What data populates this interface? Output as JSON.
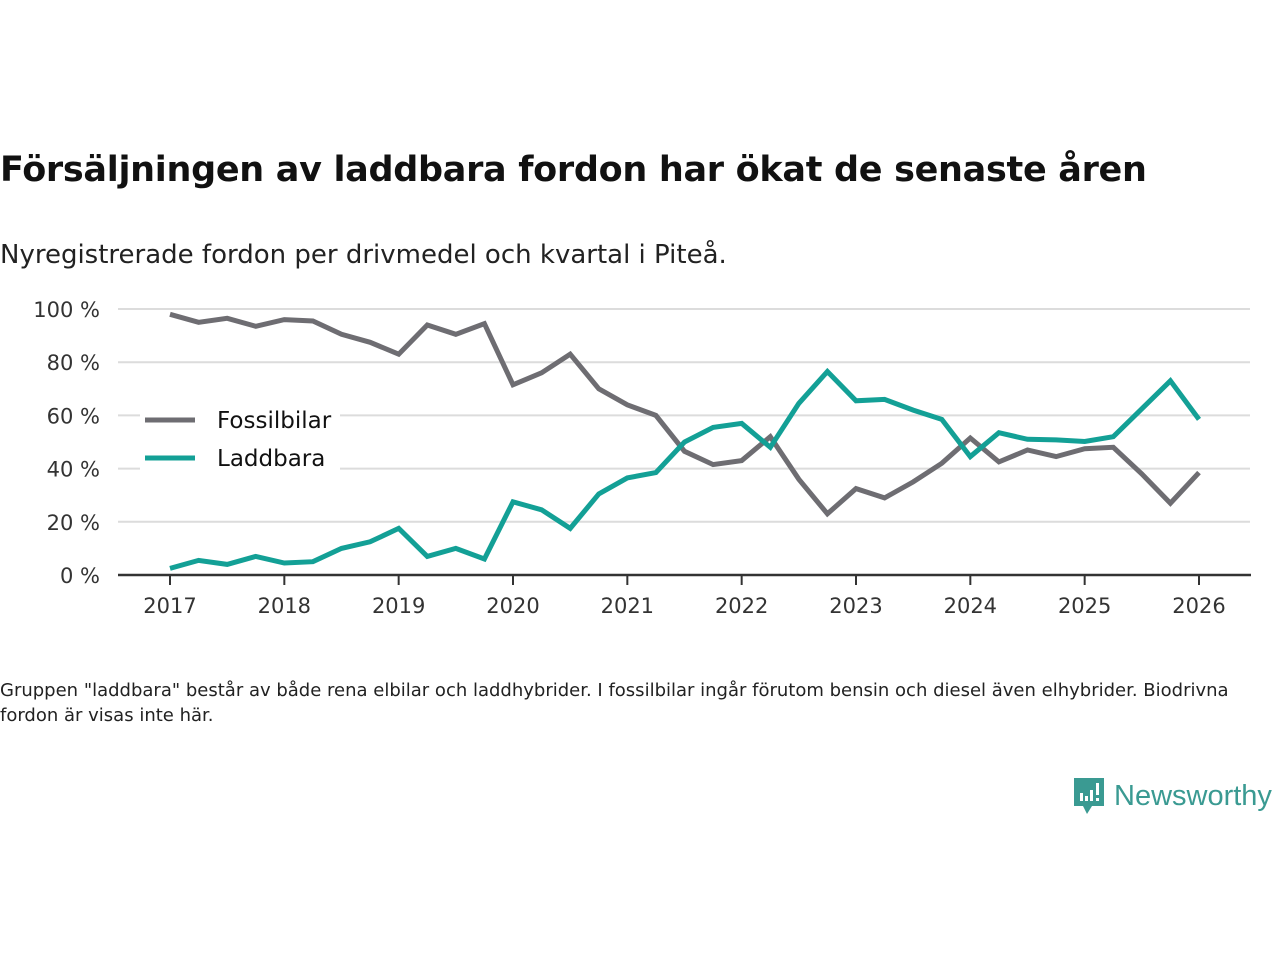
{
  "title": "Försäljningen av laddbara fordon har ökat de senaste åren",
  "subtitle": "Nyregistrerade fordon per drivmedel och kvartal i Piteå.",
  "note": "Gruppen \"laddbara\" består av både rena elbilar och laddhybrider. I fossilbilar ingår förutom bensin och diesel även elhybrider. Biodrivna fordon är visas inte här.",
  "brand": "Newsworthy",
  "colors": {
    "fossil": "#6e6d72",
    "laddbara": "#13a096",
    "brand": "#3a9a92"
  },
  "chart_data": {
    "type": "line",
    "xlabel": "",
    "ylabel": "",
    "ylim": [
      0,
      100
    ],
    "xlim": [
      2017,
      2026
    ],
    "grid": true,
    "legend_position": "left-middle",
    "x_ticks": [
      "2017",
      "2018",
      "2019",
      "2020",
      "2021",
      "2022",
      "2023",
      "2024",
      "2025",
      "2026"
    ],
    "y_ticks": [
      "0 %",
      "20 %",
      "40 %",
      "60 %",
      "80 %",
      "100 %"
    ],
    "x": [
      2017,
      2017.25,
      2017.5,
      2017.75,
      2018,
      2018.25,
      2018.5,
      2018.75,
      2019,
      2019.25,
      2019.5,
      2019.75,
      2020,
      2020.25,
      2020.5,
      2020.75,
      2021,
      2021.25,
      2021.5,
      2021.75,
      2022,
      2022.25,
      2022.5,
      2022.75,
      2023,
      2023.25,
      2023.5,
      2023.75,
      2024,
      2024.25,
      2024.5,
      2024.75,
      2025,
      2025.25,
      2025.5,
      2025.75,
      2026
    ],
    "series": [
      {
        "name": "Fossilbilar",
        "color": "#6e6d72",
        "values": [
          98,
          95,
          96.5,
          93.5,
          96,
          95.5,
          90.5,
          87.5,
          83,
          94,
          90.5,
          94.5,
          71.5,
          76,
          83,
          70,
          64,
          60,
          46.5,
          41.5,
          43,
          52,
          36,
          23,
          32.5,
          29,
          35,
          42,
          51.5,
          42.5,
          47,
          44.5,
          47.5,
          48,
          38,
          27,
          38.5
        ]
      },
      {
        "name": "Laddbara",
        "color": "#13a096",
        "values": [
          2.5,
          5.5,
          4,
          7,
          4.5,
          5,
          10,
          12.5,
          17.5,
          7,
          10,
          6,
          27.5,
          24.5,
          17.5,
          30.5,
          36.5,
          38.5,
          50,
          55.5,
          57,
          48,
          64.5,
          76.5,
          65.5,
          66,
          62,
          58.5,
          44.5,
          53.5,
          51,
          50.8,
          50.2,
          52,
          62.5,
          73,
          58.5
        ]
      }
    ]
  }
}
